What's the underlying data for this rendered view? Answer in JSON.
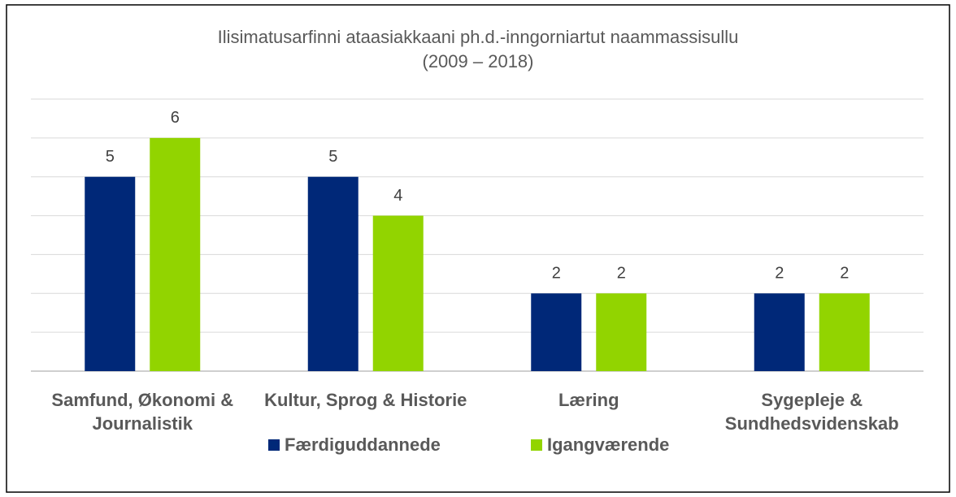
{
  "chart_data": {
    "type": "bar",
    "title": "Ilisimatusarfinni ataasiakkaani ph.d.-inngorniartut naammassisullu",
    "subtitle": "(2009 – 2018)",
    "categories": [
      "Samfund, Økonomi & Journalistik",
      "Kultur, Sprog & Historie",
      "Læring",
      "Sygepleje & Sundhedsvidenskab"
    ],
    "series": [
      {
        "name": "Færdiguddannede",
        "color": "#002878",
        "values": [
          5,
          5,
          2,
          2
        ]
      },
      {
        "name": "Igangværende",
        "color": "#92d400",
        "values": [
          6,
          4,
          2,
          2
        ]
      }
    ],
    "ylim": [
      0,
      7
    ],
    "yticks": [
      0,
      1,
      2,
      3,
      4,
      5,
      6,
      7
    ],
    "grid": true,
    "legend": "bottom"
  }
}
